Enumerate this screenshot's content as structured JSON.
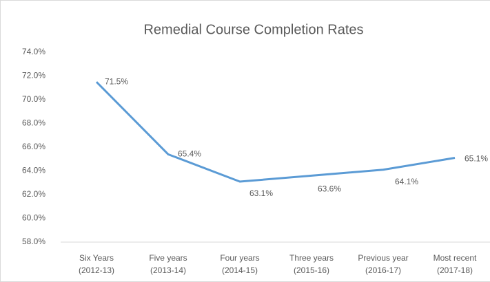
{
  "chart_data": {
    "type": "line",
    "title": "Remedial Course Completion Rates",
    "categories": [
      [
        "Six Years",
        "(2012-13)"
      ],
      [
        "Five years",
        "(2013-14)"
      ],
      [
        "Four years",
        "(2014-15)"
      ],
      [
        "Three years",
        "(2015-16)"
      ],
      [
        "Previous year",
        "(2016-17)"
      ],
      [
        "Most recent",
        "(2017-18)"
      ]
    ],
    "series": [
      {
        "name": null,
        "color": "#5b9bd5",
        "values": [
          71.5,
          65.4,
          63.1,
          63.6,
          64.1,
          65.1
        ],
        "value_labels": [
          "71.5%",
          "65.4%",
          "63.1%",
          "63.6%",
          "64.1%",
          "65.1%"
        ]
      }
    ],
    "ylim": [
      58,
      74
    ],
    "yticks": [
      {
        "value": 58,
        "label": "58.0%"
      },
      {
        "value": 60,
        "label": "60.0%"
      },
      {
        "value": 62,
        "label": "62.0%"
      },
      {
        "value": 64,
        "label": "64.0%"
      },
      {
        "value": 66,
        "label": "66.0%"
      },
      {
        "value": 68,
        "label": "68.0%"
      },
      {
        "value": 70,
        "label": "70.0%"
      },
      {
        "value": 72,
        "label": "72.0%"
      },
      {
        "value": 74,
        "label": "74.0%"
      }
    ],
    "grid": false
  }
}
